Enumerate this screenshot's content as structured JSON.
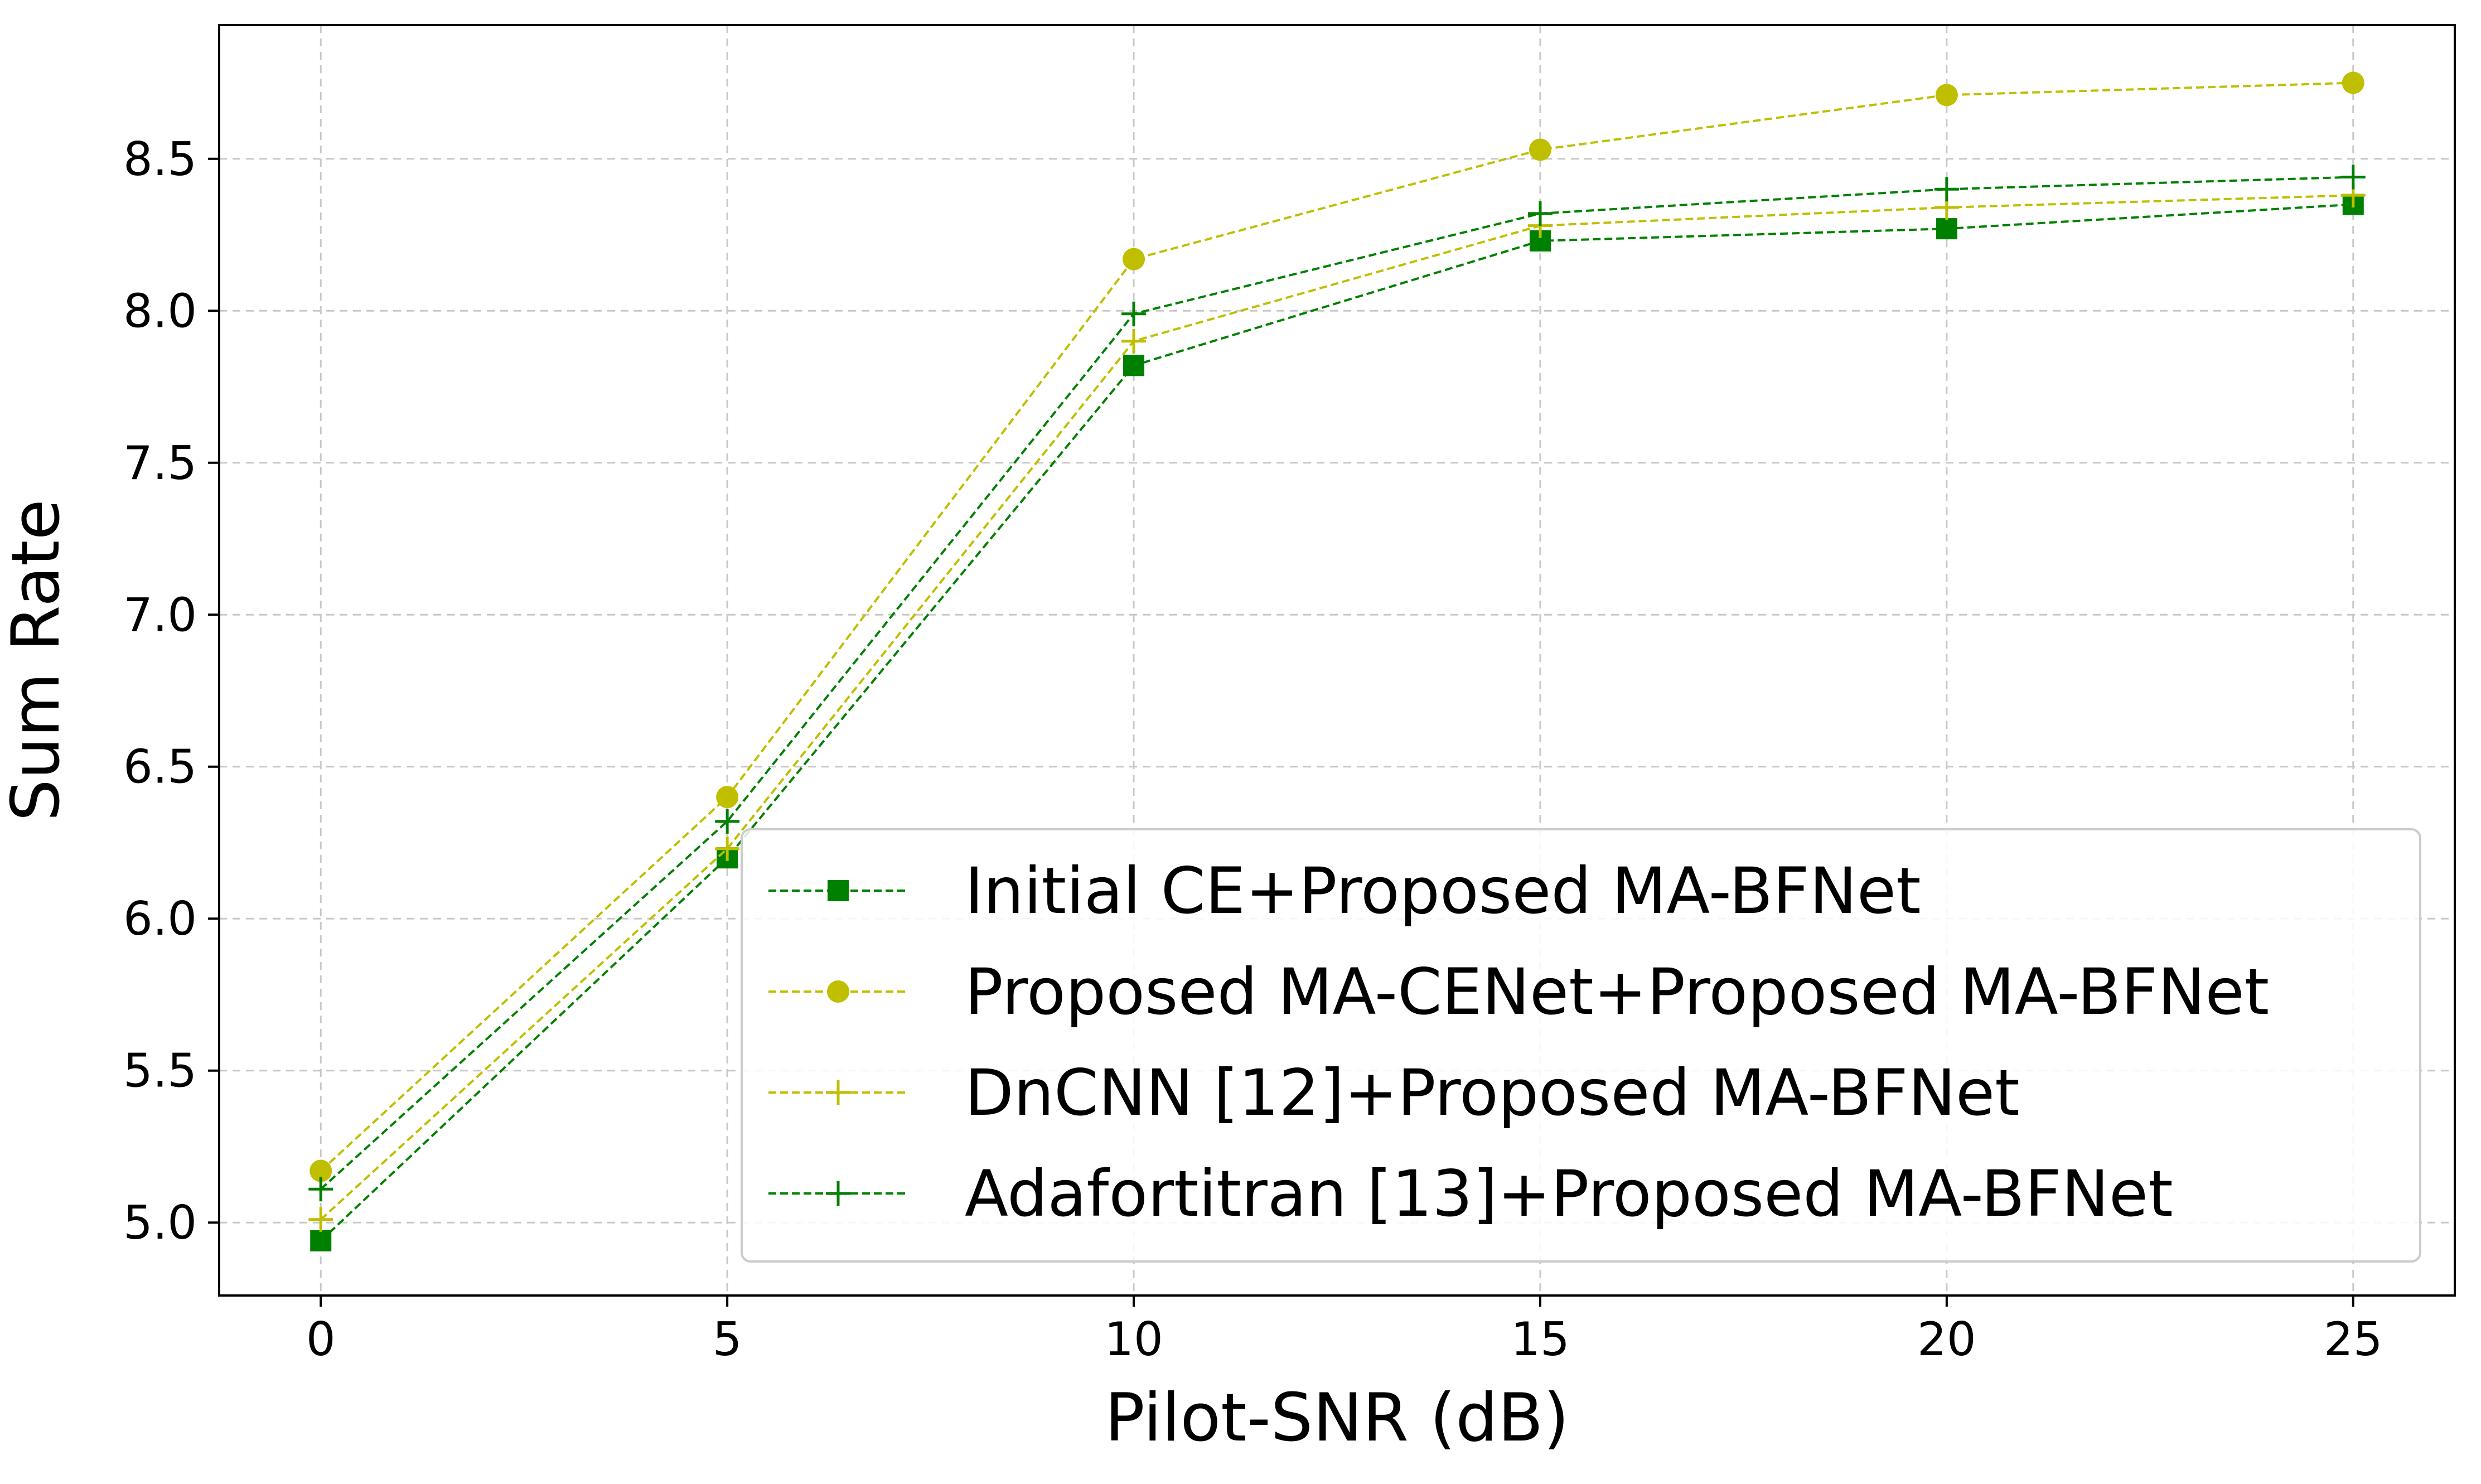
{
  "chart_data": {
    "type": "line",
    "title": "",
    "xlabel": "Pilot-SNR (dB)",
    "ylabel": "Sum Rate",
    "x": [
      0,
      5,
      10,
      15,
      20,
      25
    ],
    "xlim": [
      -1.25,
      26.25
    ],
    "ylim": [
      4.76,
      8.94
    ],
    "xticks": [
      0,
      5,
      10,
      15,
      20,
      25
    ],
    "yticks": [
      5.0,
      5.5,
      6.0,
      6.5,
      7.0,
      7.5,
      8.0,
      8.5
    ],
    "xtick_labels": [
      "0",
      "5",
      "10",
      "15",
      "20",
      "25"
    ],
    "ytick_labels": [
      "5.0",
      "5.5",
      "6.0",
      "6.5",
      "7.0",
      "7.5",
      "8.0",
      "8.5"
    ],
    "grid": true,
    "grid_style": "dashed",
    "legend_position": "lower-right",
    "series": [
      {
        "name": "Initial CE+Proposed MA-BFNet",
        "values": [
          4.94,
          6.2,
          7.82,
          8.23,
          8.27,
          8.35
        ],
        "color": "#008000",
        "marker": "square",
        "line_style": "dashed"
      },
      {
        "name": "Proposed MA-CENet+Proposed MA-BFNet",
        "values": [
          5.17,
          6.4,
          8.17,
          8.53,
          8.71,
          8.75
        ],
        "color": "#bfbf00",
        "marker": "circle",
        "line_style": "dashed"
      },
      {
        "name": "DnCNN [12]+Proposed MA-BFNet",
        "values": [
          5.01,
          6.23,
          7.9,
          8.28,
          8.34,
          8.38
        ],
        "color": "#bfbf00",
        "marker": "plus",
        "line_style": "dashed"
      },
      {
        "name": "Adafortitran [13]+Proposed MA-BFNet",
        "values": [
          5.11,
          6.32,
          7.99,
          8.32,
          8.4,
          8.44
        ],
        "color": "#008000",
        "marker": "plus",
        "line_style": "dashed"
      }
    ]
  }
}
